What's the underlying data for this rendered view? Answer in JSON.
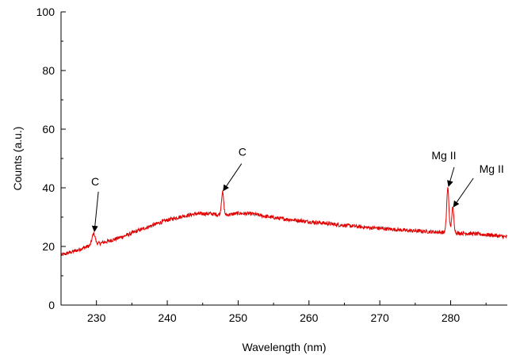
{
  "chart_data": {
    "type": "line",
    "title": "",
    "xlabel": "Wavelength (nm)",
    "ylabel": "Counts (a.u.)",
    "xlim": [
      225,
      288
    ],
    "ylim": [
      0,
      100
    ],
    "x_ticks": [
      230,
      240,
      250,
      260,
      270,
      280
    ],
    "y_ticks": [
      0,
      20,
      40,
      60,
      80,
      100
    ],
    "grid": false,
    "series": [
      {
        "color": "#e00000",
        "baseline": [
          [
            225,
            17
          ],
          [
            227,
            18.5
          ],
          [
            229,
            20.2
          ],
          [
            230,
            20.8
          ],
          [
            232,
            22
          ],
          [
            234,
            23.6
          ],
          [
            236,
            25.5
          ],
          [
            238,
            27.3
          ],
          [
            240,
            29
          ],
          [
            242,
            30.2
          ],
          [
            244,
            31.1
          ],
          [
            246,
            31.2
          ],
          [
            248,
            30.6
          ],
          [
            250,
            31.3
          ],
          [
            252,
            31.1
          ],
          [
            254,
            30.2
          ],
          [
            256,
            29.5
          ],
          [
            258,
            29
          ],
          [
            260,
            28.4
          ],
          [
            262,
            28
          ],
          [
            264,
            27.4
          ],
          [
            266,
            27
          ],
          [
            268,
            26.5
          ],
          [
            270,
            26.2
          ],
          [
            272,
            25.8
          ],
          [
            274,
            25.4
          ],
          [
            276,
            25.2
          ],
          [
            278,
            24.9
          ],
          [
            279,
            24.8
          ],
          [
            280,
            24.6
          ],
          [
            282,
            24.5
          ],
          [
            284,
            24.2
          ],
          [
            286,
            23.8
          ],
          [
            288,
            23.2
          ]
        ],
        "peaks": [
          {
            "x": 229.6,
            "height": 3.8,
            "width": 0.22
          },
          {
            "x": 247.8,
            "height": 7.8,
            "width": 0.16
          },
          {
            "x": 279.6,
            "height": 15.2,
            "width": 0.16
          },
          {
            "x": 280.3,
            "height": 8.5,
            "width": 0.16
          }
        ]
      }
    ],
    "annotations": [
      {
        "text": "C",
        "x": 229.6,
        "y": 24.6
      },
      {
        "text": "C",
        "x": 247.8,
        "y": 38.5
      },
      {
        "text": "Mg II",
        "x": 279.6,
        "y": 40
      },
      {
        "text": "Mg II",
        "x": 280.3,
        "y": 33
      }
    ]
  }
}
